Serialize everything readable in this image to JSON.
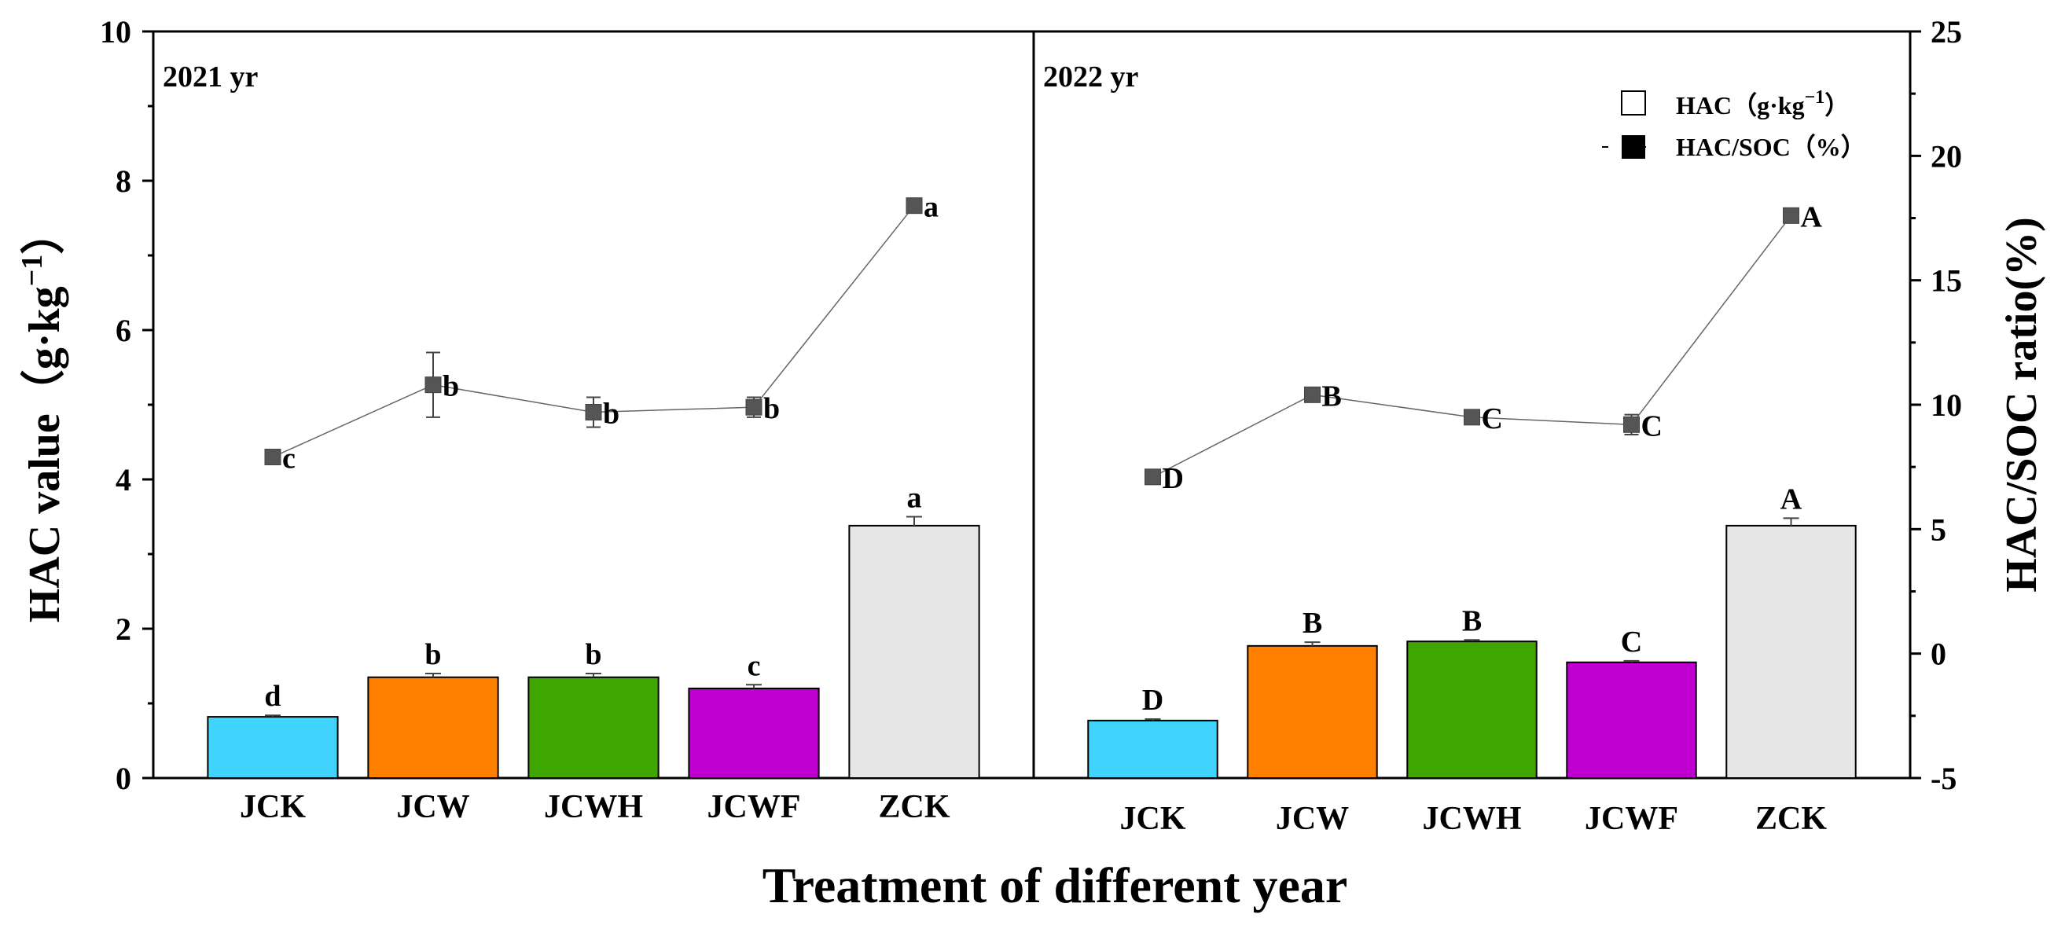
{
  "chart_data": {
    "type": "bar",
    "y_left_title": "HAC value（g·kg",
    "y_left_title_sup": "−1",
    "y_left_title_end": "）",
    "y_right_title": "HAC/SOC ratio(%)",
    "x_title": "Treatment  of different year",
    "ylim_left": [
      0,
      10
    ],
    "yticks_left": [
      "0",
      "2",
      "4",
      "6",
      "8",
      "10"
    ],
    "ylim_right": [
      -5,
      25
    ],
    "yticks_right": [
      "-5",
      "0",
      "5",
      "10",
      "15",
      "20",
      "25"
    ],
    "legend": {
      "bar": "HAC（g·kg",
      "bar_sup": "−1",
      "bar_end": "）",
      "line": "HAC/SOC（%）"
    },
    "panels": [
      {
        "label": "2021 yr",
        "categories": [
          "JCK",
          "JCW",
          "JCWH",
          "JCWF",
          "ZCK"
        ],
        "colors": [
          "#40d4fc",
          "#ff8000",
          "#3fa500",
          "#c000d0",
          "#e6e6e6"
        ],
        "hac": [
          0.82,
          1.35,
          1.35,
          1.2,
          3.38
        ],
        "hac_err": [
          0.02,
          0.05,
          0.05,
          0.05,
          0.12
        ],
        "hac_sig": [
          "d",
          "b",
          "b",
          "c",
          "a"
        ],
        "ratio": [
          7.9,
          10.8,
          9.7,
          9.9,
          18.0
        ],
        "ratio_err": [
          0.2,
          1.3,
          0.6,
          0.4,
          0.2
        ],
        "ratio_sig": [
          "c",
          "b",
          "b",
          "b",
          "a"
        ]
      },
      {
        "label": "2022 yr",
        "categories": [
          "JCK",
          "JCW",
          "JCWH",
          "JCWF",
          "ZCK"
        ],
        "colors": [
          "#40d4fc",
          "#ff8000",
          "#3fa500",
          "#c000d0",
          "#e6e6e6"
        ],
        "hac": [
          0.77,
          1.77,
          1.83,
          1.55,
          3.38
        ],
        "hac_err": [
          0.02,
          0.05,
          0.02,
          0.02,
          0.1
        ],
        "hac_sig": [
          "D",
          "B",
          "B",
          "C",
          "A"
        ],
        "ratio": [
          7.1,
          10.4,
          9.5,
          9.2,
          17.6
        ],
        "ratio_err": [
          0.2,
          0.2,
          0.2,
          0.4,
          0.2
        ],
        "ratio_sig": [
          "D",
          "B",
          "C",
          "C",
          "A"
        ]
      }
    ]
  }
}
